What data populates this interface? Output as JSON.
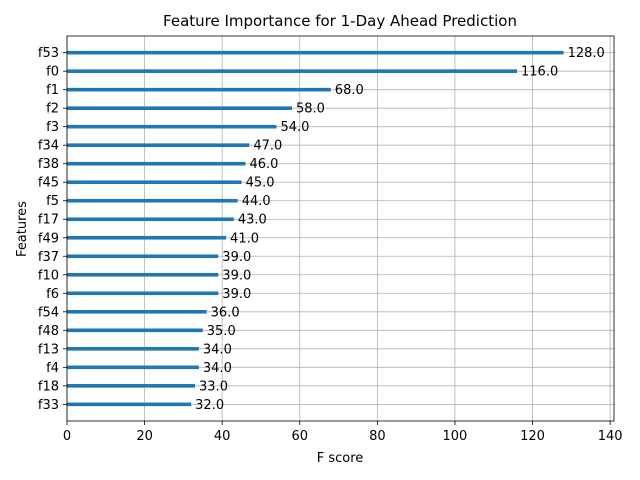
{
  "chart_data": {
    "type": "bar",
    "orientation": "horizontal",
    "title": "Feature Importance for 1-Day Ahead Prediction",
    "xlabel": "F score",
    "ylabel": "Features",
    "xlim": [
      0,
      141
    ],
    "xticks": [
      0,
      20,
      40,
      60,
      80,
      100,
      120,
      140
    ],
    "grid": true,
    "bar_color": "#1f77b4",
    "categories": [
      "f53",
      "f0",
      "f1",
      "f2",
      "f3",
      "f34",
      "f38",
      "f45",
      "f5",
      "f17",
      "f49",
      "f37",
      "f10",
      "f6",
      "f54",
      "f48",
      "f13",
      "f4",
      "f18",
      "f33"
    ],
    "values": [
      128.0,
      116.0,
      68.0,
      58.0,
      54.0,
      47.0,
      46.0,
      45.0,
      44.0,
      43.0,
      41.0,
      39.0,
      39.0,
      39.0,
      36.0,
      35.0,
      34.0,
      34.0,
      33.0,
      32.0
    ],
    "value_labels": [
      "128.0",
      "116.0",
      "68.0",
      "58.0",
      "54.0",
      "47.0",
      "46.0",
      "45.0",
      "44.0",
      "43.0",
      "41.0",
      "39.0",
      "39.0",
      "39.0",
      "36.0",
      "35.0",
      "34.0",
      "34.0",
      "33.0",
      "32.0"
    ]
  }
}
